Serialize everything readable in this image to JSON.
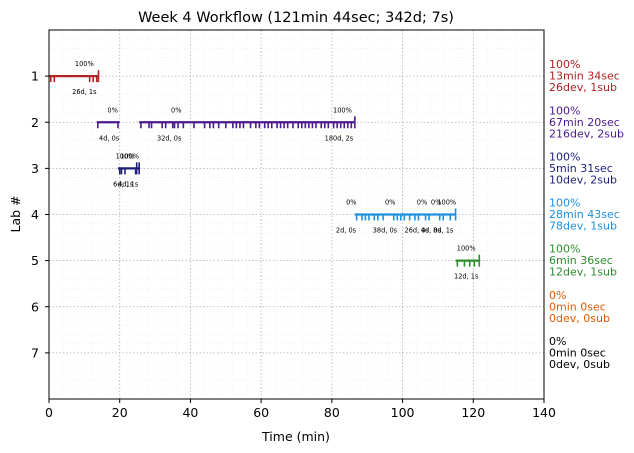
{
  "chart_data": {
    "type": "timeline",
    "title": "Week 4 Workflow (121min 44sec; 342d; 7s)",
    "xlabel": "Time (min)",
    "ylabel": "Lab #",
    "xlim": [
      0,
      140
    ],
    "ylim": [
      8,
      0
    ],
    "xticks": [
      "0",
      "20",
      "40",
      "60",
      "80",
      "100",
      "120",
      "140"
    ],
    "yticks": [
      "1",
      "2",
      "3",
      "4",
      "5",
      "6",
      "7"
    ],
    "grid": true,
    "labs": [
      {
        "lab": 1,
        "color": "#b22222",
        "segments": [
          [
            0,
            14
          ]
        ],
        "dev_times": [
          0.5,
          1.5,
          11.5,
          12.5,
          13.5
        ],
        "sub_times": [
          14
        ],
        "annotations": [
          {
            "x": 10,
            "pos": "above",
            "text": "100%"
          },
          {
            "x": 10,
            "pos": "below",
            "text": "26d, 1s"
          }
        ],
        "side": [
          "100%",
          "13min 34sec",
          "26dev, 1sub"
        ]
      },
      {
        "lab": 2,
        "color": "#4b1a8c",
        "segments": [
          [
            13.5,
            20
          ],
          [
            25.5,
            86.5
          ]
        ],
        "dev_times": [
          13.8,
          19.5,
          26,
          28.3,
          29,
          32,
          33,
          35,
          35.5,
          36.5,
          38,
          41,
          44,
          45.5,
          46.5,
          48,
          50,
          52,
          53,
          54,
          55,
          57,
          58.5,
          59.5,
          61,
          62,
          63,
          64.5,
          65.5,
          66.5,
          67.5,
          69,
          70.5,
          71.5,
          72.5,
          73.5,
          74.5,
          75.5,
          77,
          78,
          79,
          80.5,
          81.5,
          82.5,
          83.5,
          84.5,
          85.5
        ],
        "sub_times": [
          86.5
        ],
        "annotations": [
          {
            "x": 18,
            "pos": "above",
            "text": "0%"
          },
          {
            "x": 17,
            "pos": "below",
            "text": "4d, 0s"
          },
          {
            "x": 36,
            "pos": "above",
            "text": "0%"
          },
          {
            "x": 34,
            "pos": "below",
            "text": "32d, 0s"
          },
          {
            "x": 83,
            "pos": "above",
            "text": "100%"
          },
          {
            "x": 82,
            "pos": "below",
            "text": "180d, 2s"
          }
        ],
        "side": [
          "100%",
          "67min 20sec",
          "216dev, 2sub"
        ]
      },
      {
        "lab": 3,
        "color": "#1f1f7a",
        "segments": [
          [
            19.5,
            25.5
          ]
        ],
        "dev_times": [
          20,
          20.5,
          21.5,
          24.5
        ],
        "sub_times": [
          24.8,
          25.5
        ],
        "annotations": [
          {
            "x": 21.5,
            "pos": "above",
            "text": "100%"
          },
          {
            "x": 22.8,
            "pos": "above",
            "text": "100%"
          },
          {
            "x": 21,
            "pos": "below",
            "text": "6d, 1s"
          },
          {
            "x": 22.4,
            "pos": "below",
            "text": "4d, 1s"
          }
        ],
        "side": [
          "100%",
          "5min 31sec",
          "10dev, 2sub"
        ]
      },
      {
        "lab": 4,
        "color": "#1e90e0",
        "segments": [
          [
            86.5,
            115
          ]
        ],
        "dev_times": [
          87,
          88.5,
          89.5,
          90.5,
          92,
          93,
          94.5,
          97.5,
          98.5,
          99.5,
          100.5,
          102,
          103.5,
          104.5,
          106.5,
          107.5,
          110.5,
          111.5,
          113.5
        ],
        "sub_times": [
          115
        ],
        "annotations": [
          {
            "x": 85.5,
            "pos": "above",
            "text": "0%"
          },
          {
            "x": 84,
            "pos": "below",
            "text": "2d, 0s"
          },
          {
            "x": 96.5,
            "pos": "above",
            "text": "0%"
          },
          {
            "x": 95,
            "pos": "below",
            "text": "38d, 0s"
          },
          {
            "x": 105.5,
            "pos": "above",
            "text": "0%"
          },
          {
            "x": 104,
            "pos": "below",
            "text": "26d, 0s"
          },
          {
            "x": 109.5,
            "pos": "above",
            "text": "0%"
          },
          {
            "x": 108,
            "pos": "below",
            "text": "4d, 0s"
          },
          {
            "x": 112.5,
            "pos": "above",
            "text": "100%"
          },
          {
            "x": 111.5,
            "pos": "below",
            "text": "8d, 1s"
          }
        ],
        "side": [
          "100%",
          "28min 43sec",
          "78dev, 1sub"
        ]
      },
      {
        "lab": 5,
        "color": "#2e8b2e",
        "segments": [
          [
            115,
            121.7
          ]
        ],
        "dev_times": [
          115.5,
          117.5,
          119,
          120.3
        ],
        "sub_times": [
          121.7
        ],
        "annotations": [
          {
            "x": 118,
            "pos": "above",
            "text": "100%"
          },
          {
            "x": 118,
            "pos": "below",
            "text": "12d, 1s"
          }
        ],
        "side": [
          "100%",
          "6min 36sec",
          "12dev, 1sub"
        ]
      },
      {
        "lab": 6,
        "color": "#e05a00",
        "segments": [],
        "dev_times": [],
        "sub_times": [],
        "annotations": [],
        "side": [
          "0%",
          "0min 0sec",
          "0dev, 0sub"
        ]
      },
      {
        "lab": 7,
        "color": "#000000",
        "segments": [],
        "dev_times": [],
        "sub_times": [],
        "annotations": [],
        "side": [
          "0%",
          "0min 0sec",
          "0dev, 0sub"
        ]
      }
    ]
  }
}
